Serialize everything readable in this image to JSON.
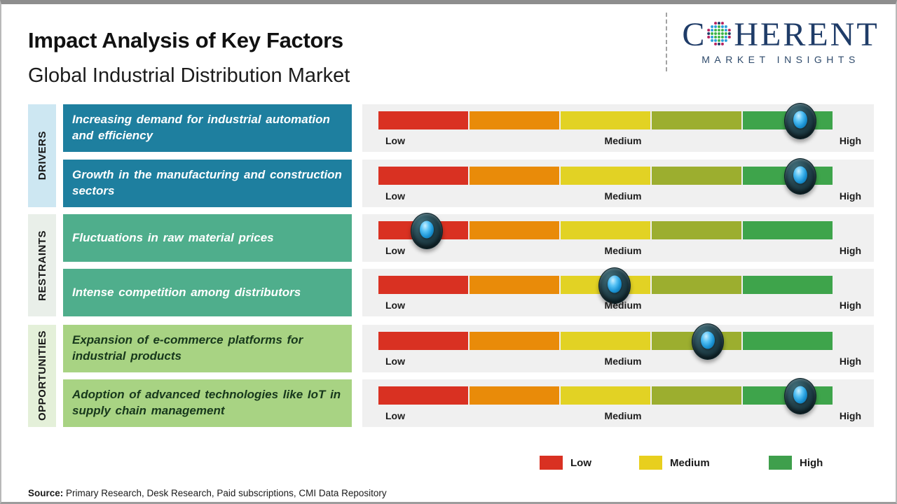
{
  "header": {
    "title": "Impact Analysis of Key Factors",
    "subtitle": "Global Industrial Distribution Market"
  },
  "logo": {
    "brand_c": "C",
    "brand_rest": "HERENT",
    "tagline": "MARKET INSIGHTS",
    "brand_color": "#1f3c68"
  },
  "chart_data": {
    "type": "table",
    "title": "Impact Analysis of Key Factors",
    "subtitle": "Global Industrial Distribution Market",
    "scale_labels": [
      "Low",
      "Medium",
      "High"
    ],
    "scale_range": [
      0,
      100
    ],
    "grid": false,
    "legend_position": "bottom-right",
    "segment_colors": [
      "#d93122",
      "#e98b09",
      "#e2d224",
      "#9cae2f",
      "#3ea44b"
    ],
    "groups": [
      {
        "label": "DRIVERS",
        "strip_color": "#cde7f2",
        "box_color": "#1e7f9f",
        "text_color": "#ffffff"
      },
      {
        "label": "RESTRAINTS",
        "strip_color": "#e9efe9",
        "box_color": "#4fae8c",
        "text_color": "#ffffff"
      },
      {
        "label": "OPPORTUNITIES",
        "strip_color": "#e4f0d9",
        "box_color": "#a8d383",
        "text_color": "#17381c"
      }
    ],
    "rows": [
      {
        "group": "DRIVERS",
        "factor": "Increasing demand for industrial automation and efficiency",
        "impact": "High",
        "marker_pct": 92.9
      },
      {
        "group": "DRIVERS",
        "factor": "Growth in the manufacturing and construction sectors",
        "impact": "High",
        "marker_pct": 92.9
      },
      {
        "group": "RESTRAINTS",
        "factor": "Fluctuations in raw material prices",
        "impact": "Low",
        "marker_pct": 10.6
      },
      {
        "group": "RESTRAINTS",
        "factor": "Intense competition among distributors",
        "impact": "Medium",
        "marker_pct": 52.0
      },
      {
        "group": "OPPORTUNITIES",
        "factor": "Expansion of e-commerce platforms for industrial products",
        "impact": "Medium-High",
        "marker_pct": 72.5
      },
      {
        "group": "OPPORTUNITIES",
        "factor": "Adoption of advanced technologies like IoT in supply chain management",
        "impact": "High",
        "marker_pct": 92.9
      }
    ],
    "legend": [
      {
        "label": "Low",
        "color": "#d93122"
      },
      {
        "label": "Medium",
        "color": "#e8cf1e"
      },
      {
        "label": "High",
        "color": "#3f9f4c"
      }
    ]
  },
  "footer": {
    "source_label": "Source:",
    "source_text": " Primary Research, Desk Research, Paid subscriptions, CMI Data Repository"
  }
}
